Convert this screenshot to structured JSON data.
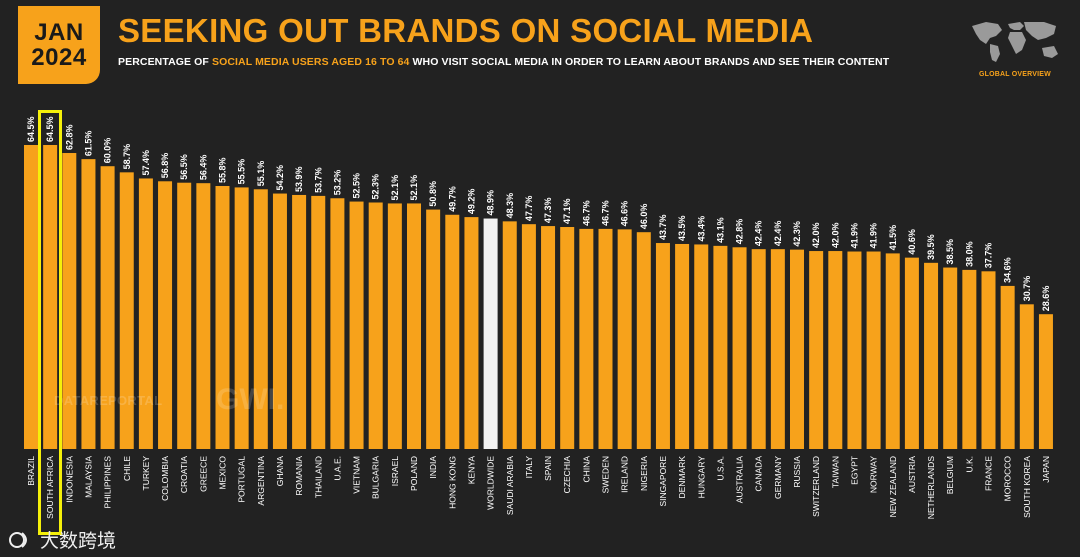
{
  "badge": {
    "month": "JAN",
    "year": "2024"
  },
  "header": {
    "title": "SEEKING OUT BRANDS ON SOCIAL MEDIA",
    "subtitle_parts": {
      "p1": "PERCENTAGE OF ",
      "h1": "SOCIAL MEDIA USERS AGED",
      "p2": " ",
      "h2": "16 TO 64",
      "p3": " WHO VISIT SOCIAL MEDIA IN ORDER TO LEARN ABOUT BRANDS AND SEE THEIR CONTENT"
    },
    "global_overview": "GLOBAL OVERVIEW"
  },
  "watermarks": {
    "left": "DATAREPORTAL",
    "center": "GWI."
  },
  "footer": {
    "label": "大数跨境"
  },
  "colors": {
    "background": "#222222",
    "bar": "#f7a21b",
    "worldwide_bar": "#f2f2f2",
    "highlight": "#f5f00a"
  },
  "chart_data": {
    "type": "bar",
    "title": "SEEKING OUT BRANDS ON SOCIAL MEDIA",
    "ylabel": "Percentage of social media users aged 16 to 64",
    "ylim": [
      0,
      70
    ],
    "grid": false,
    "highlight_category": "WORLDWIDE",
    "boxed_category": "SOUTH AFRICA",
    "categories": [
      "BRAZIL",
      "SOUTH AFRICA",
      "INDONESIA",
      "MALAYSIA",
      "PHILIPPINES",
      "CHILE",
      "TURKEY",
      "COLOMBIA",
      "CROATIA",
      "GREECE",
      "MEXICO",
      "PORTUGAL",
      "ARGENTINA",
      "GHANA",
      "ROMANIA",
      "THAILAND",
      "U.A.E.",
      "VIETNAM",
      "BULGARIA",
      "ISRAEL",
      "POLAND",
      "INDIA",
      "HONG KONG",
      "KENYA",
      "WORLDWIDE",
      "SAUDI ARABIA",
      "ITALY",
      "SPAIN",
      "CZECHIA",
      "CHINA",
      "SWEDEN",
      "IRELAND",
      "NIGERIA",
      "SINGAPORE",
      "DENMARK",
      "HUNGARY",
      "U.S.A.",
      "AUSTRALIA",
      "CANADA",
      "GERMANY",
      "RUSSIA",
      "SWITZERLAND",
      "TAIWAN",
      "EGYPT",
      "NORWAY",
      "NEW ZEALAND",
      "AUSTRIA",
      "NETHERLANDS",
      "BELGIUM",
      "U.K.",
      "FRANCE",
      "MOROCCO",
      "SOUTH KOREA",
      "JAPAN"
    ],
    "values": [
      64.5,
      64.5,
      62.8,
      61.5,
      60.0,
      58.7,
      57.4,
      56.8,
      56.5,
      56.4,
      55.8,
      55.5,
      55.1,
      54.2,
      53.9,
      53.7,
      53.2,
      52.5,
      52.3,
      52.1,
      52.1,
      50.8,
      49.7,
      49.2,
      48.9,
      48.3,
      47.7,
      47.3,
      47.1,
      46.7,
      46.7,
      46.6,
      46.0,
      43.7,
      43.5,
      43.4,
      43.1,
      42.8,
      42.4,
      42.4,
      42.3,
      42.0,
      42.0,
      41.9,
      41.9,
      41.5,
      40.6,
      39.5,
      38.5,
      38.0,
      37.7,
      34.6,
      30.7,
      28.6
    ],
    "labels": [
      "64.5%",
      "64.5%",
      "62.8%",
      "61.5%",
      "60.0%",
      "58.7%",
      "57.4%",
      "56.8%",
      "56.5%",
      "56.4%",
      "55.8%",
      "55.5%",
      "55.1%",
      "54.2%",
      "53.9%",
      "53.7%",
      "53.2%",
      "52.5%",
      "52.3%",
      "52.1%",
      "52.1%",
      "50.8%",
      "49.7%",
      "49.2%",
      "48.9%",
      "48.3%",
      "47.7%",
      "47.3%",
      "47.1%",
      "46.7%",
      "46.7%",
      "46.6%",
      "46.0%",
      "43.7%",
      "43.5%",
      "43.4%",
      "43.1%",
      "42.8%",
      "42.4%",
      "42.4%",
      "42.3%",
      "42.0%",
      "42.0%",
      "41.9%",
      "41.9%",
      "41.5%",
      "40.6%",
      "39.5%",
      "38.5%",
      "38.0%",
      "37.7%",
      "34.6%",
      "30.7%",
      "28.6%"
    ]
  }
}
